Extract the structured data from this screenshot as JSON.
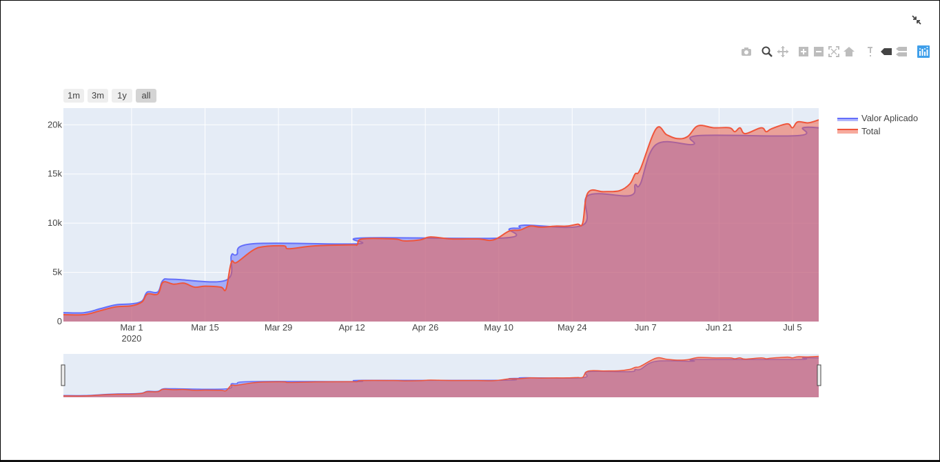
{
  "range_selector": {
    "buttons": [
      "1m",
      "3m",
      "1y",
      "all"
    ],
    "active": "all"
  },
  "modebar": {
    "icons": [
      "camera-icon",
      "zoom-icon",
      "pan-icon",
      "zoom-in-icon",
      "zoom-out-icon",
      "autoscale-icon",
      "reset-axes-home-icon",
      "spike-lines-icon",
      "hover-closest-icon",
      "hover-compare-icon",
      "plotly-logo-icon"
    ]
  },
  "colors": {
    "plot_bg": "#e5ecf6",
    "valor_line": "#636efa",
    "total_line": "#ef553b",
    "grid": "#ffffff",
    "button_bg": "#eeeeee",
    "button_active": "#d4d4d4"
  },
  "chart_data": {
    "type": "area",
    "title": "",
    "xlabel": "",
    "ylabel": "",
    "xlim": [
      "2020-02-17",
      "2020-07-10"
    ],
    "ylim": [
      0,
      21700
    ],
    "yticks": [
      {
        "value": 0,
        "label": "0"
      },
      {
        "value": 5000,
        "label": "5k"
      },
      {
        "value": 10000,
        "label": "10k"
      },
      {
        "value": 15000,
        "label": "15k"
      },
      {
        "value": 20000,
        "label": "20k"
      }
    ],
    "xticks": [
      {
        "date": "2020-03-01",
        "label": "Mar 1",
        "sub": "2020"
      },
      {
        "date": "2020-03-15",
        "label": "Mar 15"
      },
      {
        "date": "2020-03-29",
        "label": "Mar 29"
      },
      {
        "date": "2020-04-12",
        "label": "Apr 12"
      },
      {
        "date": "2020-04-26",
        "label": "Apr 26"
      },
      {
        "date": "2020-05-10",
        "label": "May 10"
      },
      {
        "date": "2020-05-24",
        "label": "May 24"
      },
      {
        "date": "2020-06-07",
        "label": "Jun 7"
      },
      {
        "date": "2020-06-21",
        "label": "Jun 21"
      },
      {
        "date": "2020-07-05",
        "label": "Jul 5"
      }
    ],
    "legend": "top-right",
    "grid": true,
    "series": [
      {
        "name": "Valor Aplicado",
        "color": "#636efa",
        "points": [
          [
            "2020-02-17",
            900
          ],
          [
            "2020-02-21",
            900
          ],
          [
            "2020-02-24",
            1300
          ],
          [
            "2020-02-27",
            1700
          ],
          [
            "2020-03-01",
            1800
          ],
          [
            "2020-03-03",
            2100
          ],
          [
            "2020-03-04",
            3000
          ],
          [
            "2020-03-06",
            3000
          ],
          [
            "2020-03-07",
            4200
          ],
          [
            "2020-03-09",
            4300
          ],
          [
            "2020-03-19",
            4200
          ],
          [
            "2020-03-20",
            6700
          ],
          [
            "2020-03-21",
            6800
          ],
          [
            "2020-03-24",
            7900
          ],
          [
            "2020-04-13",
            7900
          ],
          [
            "2020-04-14",
            8500
          ],
          [
            "2020-05-11",
            8500
          ],
          [
            "2020-05-12",
            9400
          ],
          [
            "2020-05-14",
            9500
          ],
          [
            "2020-05-15",
            9800
          ],
          [
            "2020-05-26",
            9800
          ],
          [
            "2020-05-27",
            12800
          ],
          [
            "2020-06-04",
            12800
          ],
          [
            "2020-06-05",
            13900
          ],
          [
            "2020-06-06",
            14000
          ],
          [
            "2020-06-09",
            18000
          ],
          [
            "2020-06-16",
            18000
          ],
          [
            "2020-06-17",
            18900
          ],
          [
            "2020-07-06",
            18900
          ],
          [
            "2020-07-07",
            19700
          ],
          [
            "2020-07-10",
            19700
          ]
        ]
      },
      {
        "name": "Total",
        "color": "#ef553b",
        "points": [
          [
            "2020-02-17",
            700
          ],
          [
            "2020-02-21",
            700
          ],
          [
            "2020-02-24",
            1100
          ],
          [
            "2020-02-27",
            1500
          ],
          [
            "2020-03-01",
            1600
          ],
          [
            "2020-03-03",
            2000
          ],
          [
            "2020-03-04",
            2800
          ],
          [
            "2020-03-06",
            2800
          ],
          [
            "2020-03-07",
            4000
          ],
          [
            "2020-03-09",
            3800
          ],
          [
            "2020-03-11",
            3900
          ],
          [
            "2020-03-13",
            3500
          ],
          [
            "2020-03-15",
            3600
          ],
          [
            "2020-03-18",
            3500
          ],
          [
            "2020-03-19",
            3300
          ],
          [
            "2020-03-20",
            6000
          ],
          [
            "2020-03-21",
            6000
          ],
          [
            "2020-03-24",
            7200
          ],
          [
            "2020-03-26",
            7600
          ],
          [
            "2020-03-30",
            7700
          ],
          [
            "2020-03-31",
            7400
          ],
          [
            "2020-04-05",
            7700
          ],
          [
            "2020-04-12",
            7800
          ],
          [
            "2020-04-13",
            7800
          ],
          [
            "2020-04-14",
            8400
          ],
          [
            "2020-04-20",
            8400
          ],
          [
            "2020-04-22",
            8200
          ],
          [
            "2020-04-25",
            8300
          ],
          [
            "2020-04-27",
            8600
          ],
          [
            "2020-05-01",
            8400
          ],
          [
            "2020-05-06",
            8400
          ],
          [
            "2020-05-09",
            8300
          ],
          [
            "2020-05-12",
            9200
          ],
          [
            "2020-05-14",
            9300
          ],
          [
            "2020-05-16",
            9700
          ],
          [
            "2020-05-18",
            9600
          ],
          [
            "2020-05-21",
            9700
          ],
          [
            "2020-05-23",
            9700
          ],
          [
            "2020-05-25",
            9900
          ],
          [
            "2020-05-26",
            10000
          ],
          [
            "2020-05-27",
            13100
          ],
          [
            "2020-05-30",
            13200
          ],
          [
            "2020-06-02",
            13300
          ],
          [
            "2020-06-04",
            14000
          ],
          [
            "2020-06-05",
            15000
          ],
          [
            "2020-06-06",
            15500
          ],
          [
            "2020-06-09",
            19600
          ],
          [
            "2020-06-11",
            19000
          ],
          [
            "2020-06-13",
            18600
          ],
          [
            "2020-06-15",
            18800
          ],
          [
            "2020-06-17",
            19900
          ],
          [
            "2020-06-20",
            19700
          ],
          [
            "2020-06-23",
            19700
          ],
          [
            "2020-06-24",
            19300
          ],
          [
            "2020-06-25",
            19700
          ],
          [
            "2020-06-26",
            19100
          ],
          [
            "2020-06-29",
            19700
          ],
          [
            "2020-06-30",
            19300
          ],
          [
            "2020-07-01",
            19600
          ],
          [
            "2020-07-04",
            20100
          ],
          [
            "2020-07-05",
            19700
          ],
          [
            "2020-07-06",
            20300
          ],
          [
            "2020-07-08",
            20200
          ],
          [
            "2020-07-10",
            20500
          ]
        ]
      }
    ]
  }
}
